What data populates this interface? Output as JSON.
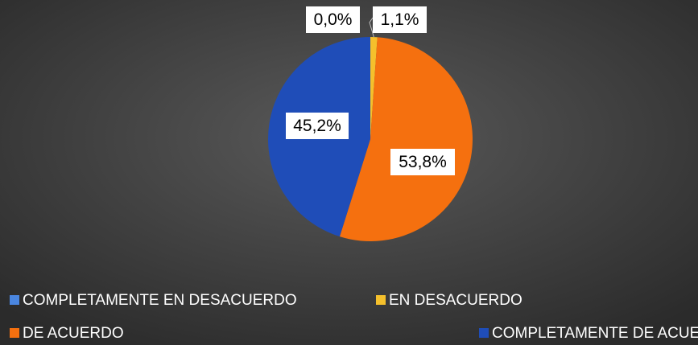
{
  "chart_data": {
    "type": "pie",
    "categories": [
      "COMPLETAMENTE EN DESACUERDO",
      "EN DESACUERDO",
      "DE ACUERDO",
      "COMPLETAMENTE DE ACUERDO"
    ],
    "values": [
      0.0,
      1.1,
      53.8,
      45.2
    ],
    "value_labels": [
      "0,0%",
      "1,1%",
      "53,8%",
      "45,2%"
    ],
    "colors": [
      "#4a86e0",
      "#f5c02c",
      "#f5700f",
      "#1f4db8"
    ],
    "legend": "bottom"
  }
}
